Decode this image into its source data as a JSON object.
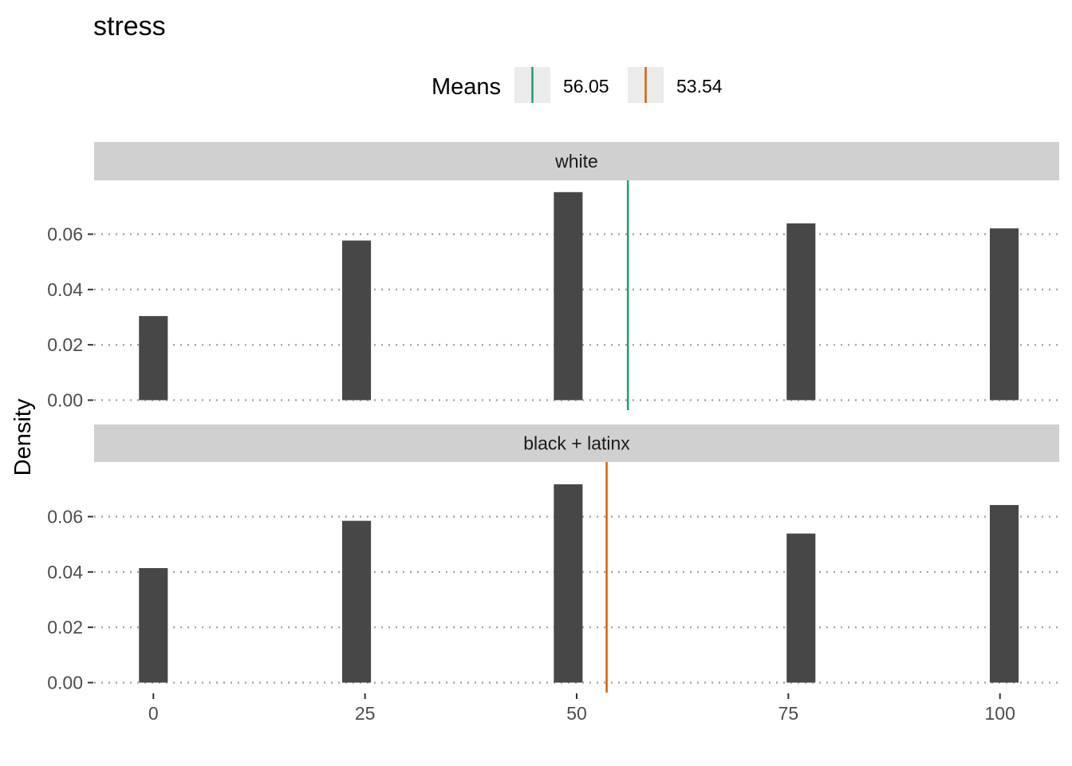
{
  "chart_data": {
    "type": "bar",
    "title": "stress",
    "xlabel": "",
    "ylabel": "Density",
    "xlim": [
      -7,
      107
    ],
    "ylim": [
      0,
      0.0785
    ],
    "x_ticks": [
      0,
      25,
      50,
      75,
      100
    ],
    "y_ticks": [
      0.0,
      0.02,
      0.04,
      0.06
    ],
    "y_tick_labels": [
      "0.00",
      "0.02",
      "0.04",
      "0.06"
    ],
    "grid": "horizontal dotted",
    "legend": {
      "title": "Means",
      "placement": "top",
      "entries": [
        {
          "label": "56.05",
          "color": "#1b9e77"
        },
        {
          "label": "53.54",
          "color": "#d95f02"
        }
      ]
    },
    "bar_width": 3.4,
    "bar_color": "#474747",
    "panels": [
      {
        "label": "white",
        "bars": [
          {
            "x": 0,
            "density": 0.0304
          },
          {
            "x": 24,
            "density": 0.0577
          },
          {
            "x": 49,
            "density": 0.0752
          },
          {
            "x": 76.5,
            "density": 0.0639
          },
          {
            "x": 100.5,
            "density": 0.0621
          }
        ],
        "mean": 56.05,
        "mean_color": "#1b9e77"
      },
      {
        "label": "black + latinx",
        "bars": [
          {
            "x": 0,
            "density": 0.0414
          },
          {
            "x": 24,
            "density": 0.0585
          },
          {
            "x": 49,
            "density": 0.0717
          },
          {
            "x": 76.5,
            "density": 0.0539
          },
          {
            "x": 100.5,
            "density": 0.0642
          }
        ],
        "mean": 53.54,
        "mean_color": "#d95f02"
      }
    ]
  }
}
